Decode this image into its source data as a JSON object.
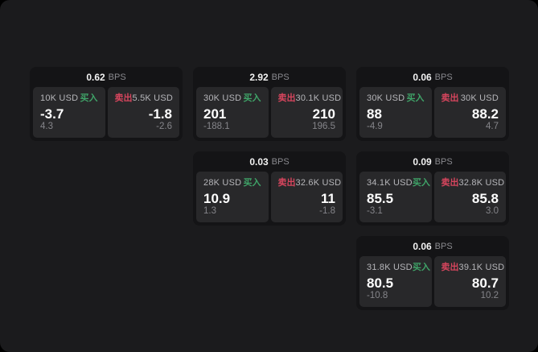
{
  "app": {
    "bps_label": "BPS",
    "buy_label": "买入",
    "sell_label": "卖出"
  },
  "colors": {
    "page_bg": "#000000",
    "panel_bg": "#1b1b1d",
    "card_bg": "#141416",
    "subcard_bg": "#28282a",
    "buy_green": "#3fa368",
    "sell_red": "#d6455d",
    "text_primary": "#ffffff",
    "text_secondary": "#b6b6ba",
    "text_muted": "#85858a"
  },
  "cards": [
    {
      "bps": "0.62",
      "buy": {
        "amount": "10K USD",
        "value": "-3.7",
        "change": "4.3"
      },
      "sell": {
        "amount": "5.5K USD",
        "value": "-1.8",
        "change": "-2.6"
      }
    },
    {
      "bps": "2.92",
      "buy": {
        "amount": "30K USD",
        "value": "201",
        "change": "-188.1"
      },
      "sell": {
        "amount": "30.1K USD",
        "value": "210",
        "change": "196.5"
      }
    },
    {
      "bps": "0.06",
      "buy": {
        "amount": "30K USD",
        "value": "88",
        "change": "-4.9"
      },
      "sell": {
        "amount": "30K USD",
        "value": "88.2",
        "change": "4.7"
      }
    },
    {
      "bps": "0.03",
      "buy": {
        "amount": "28K USD",
        "value": "10.9",
        "change": "1.3"
      },
      "sell": {
        "amount": "32.6K USD",
        "value": "11",
        "change": "-1.8"
      }
    },
    {
      "bps": "0.09",
      "buy": {
        "amount": "34.1K USD",
        "value": "85.5",
        "change": "-3.1"
      },
      "sell": {
        "amount": "32.8K USD",
        "value": "85.8",
        "change": "3.0"
      }
    },
    {
      "bps": "0.06",
      "buy": {
        "amount": "31.8K USD",
        "value": "80.5",
        "change": "-10.8"
      },
      "sell": {
        "amount": "39.1K USD",
        "value": "80.7",
        "change": "10.2"
      }
    }
  ]
}
